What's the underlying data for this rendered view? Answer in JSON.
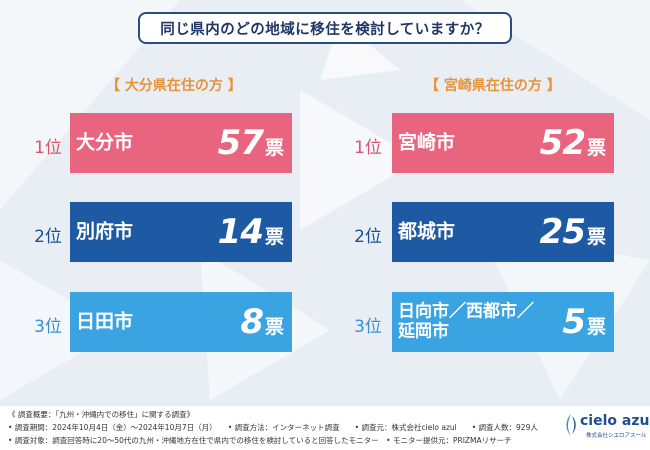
{
  "title": "同じ県内のどの地域に移住を検討していますか？",
  "left": {
    "heading": "【 大分県在住の方 】",
    "rows": [
      {
        "rank": "1位",
        "city": "大分市",
        "votes": "57",
        "unit": "票"
      },
      {
        "rank": "2位",
        "city": "別府市",
        "votes": "14",
        "unit": "票"
      },
      {
        "rank": "3位",
        "city": "日田市",
        "votes": "8",
        "unit": "票"
      }
    ]
  },
  "right": {
    "heading": "【 宮崎県在住の方 】",
    "rows": [
      {
        "rank": "1位",
        "city": "宮崎市",
        "votes": "52",
        "unit": "票"
      },
      {
        "rank": "2位",
        "city": "都城市",
        "votes": "25",
        "unit": "票"
      },
      {
        "rank": "3位",
        "city_line1": "日向市／西都市／",
        "city_line2": "延岡市",
        "votes": "5",
        "unit": "票"
      }
    ]
  },
  "footer": {
    "line1": "《 調査概要：「九州・沖縄内での移住」に関する調査》",
    "line2": "• 調査期間：2024年10月4日（金）～2024年10月7日（月）　　• 調査方法：インターネット調査　　• 調査元：株式会社cielo azul　　• 調査人数：929人",
    "line3": "• 調査対象：調査回答時に20～50代の九州・沖縄地方在住で県内での移住を検討していると回答したモニター　• モニター提供元：PRIZMAリサーチ"
  },
  "logo": {
    "name": "cielo azul",
    "sub": "株式会社シエロアスール"
  },
  "colors": {
    "rank1": "#e9647e",
    "rank2": "#1e5aa3",
    "rank3": "#3aa3e2",
    "heading": "#e8923a",
    "title_border": "#2c4d82"
  }
}
